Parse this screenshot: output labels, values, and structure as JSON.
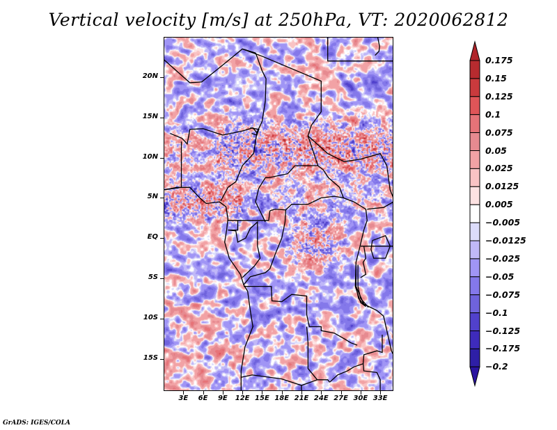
{
  "title": "Vertical velocity [m/s] at 250hPa, VT: 2020062812",
  "footer": "GrADS: IGES/COLA",
  "map": {
    "projection": "latlon",
    "lon_range": [
      0,
      35
    ],
    "lat_range": [
      -19,
      25
    ],
    "lat_ticks": [
      {
        "value": 20,
        "label": "20N"
      },
      {
        "value": 15,
        "label": "15N"
      },
      {
        "value": 10,
        "label": "10N"
      },
      {
        "value": 5,
        "label": "5N"
      },
      {
        "value": 0,
        "label": "EQ"
      },
      {
        "value": -5,
        "label": "5S"
      },
      {
        "value": -10,
        "label": "10S"
      },
      {
        "value": -15,
        "label": "15S"
      }
    ],
    "lon_ticks": [
      {
        "value": 3,
        "label": "3E"
      },
      {
        "value": 6,
        "label": "6E"
      },
      {
        "value": 9,
        "label": "9E"
      },
      {
        "value": 12,
        "label": "12E"
      },
      {
        "value": 15,
        "label": "15E"
      },
      {
        "value": 18,
        "label": "18E"
      },
      {
        "value": 21,
        "label": "21E"
      },
      {
        "value": 24,
        "label": "24E"
      },
      {
        "value": 27,
        "label": "27E"
      },
      {
        "value": 30,
        "label": "30E"
      },
      {
        "value": 33,
        "label": "33E"
      }
    ],
    "variable": "vertical velocity",
    "units": "m/s",
    "level": "250hPa",
    "valid_time": "2020062812"
  },
  "colorbar": {
    "labels": [
      "0.175",
      "0.15",
      "0.125",
      "0.1",
      "0.075",
      "0.05",
      "0.025",
      "0.0125",
      "0.005",
      "−0.005",
      "−0.0125",
      "−0.025",
      "−0.05",
      "−0.075",
      "−0.1",
      "−0.125",
      "−0.175",
      "−0.2"
    ],
    "levels": [
      0.175,
      0.15,
      0.125,
      0.1,
      0.075,
      0.05,
      0.025,
      0.0125,
      0.005,
      -0.005,
      -0.0125,
      -0.025,
      -0.05,
      -0.075,
      -0.1,
      -0.125,
      -0.175,
      -0.2
    ],
    "colors_top_to_bottom": [
      "#b0252a",
      "#b72b2f",
      "#c93a3d",
      "#e05558",
      "#e67378",
      "#e68a90",
      "#f2a2a5",
      "#f9c3c4",
      "#fde2e2",
      "#ffffff",
      "#dcdcfb",
      "#c0b8f8",
      "#a095f5",
      "#8478ea",
      "#6f63dc",
      "#5141cc",
      "#3e2bbb",
      "#2e1fa6",
      "#2a14a0"
    ],
    "extend": "both"
  },
  "chart_data": {
    "type": "heatmap",
    "title": "Vertical velocity [m/s] at 250hPa, VT: 2020062812",
    "xlabel": "",
    "ylabel": "",
    "x_tick_labels": [
      "3E",
      "6E",
      "9E",
      "12E",
      "15E",
      "18E",
      "21E",
      "24E",
      "27E",
      "30E",
      "33E"
    ],
    "y_tick_labels": [
      "20N",
      "15N",
      "10N",
      "5N",
      "EQ",
      "5S",
      "10S",
      "15S"
    ],
    "xlim": [
      0,
      35
    ],
    "ylim": [
      -19,
      25
    ],
    "color_levels": [
      -0.2,
      -0.175,
      -0.125,
      -0.1,
      -0.075,
      -0.05,
      -0.025,
      -0.0125,
      -0.005,
      0.005,
      0.0125,
      0.025,
      0.05,
      0.075,
      0.1,
      0.125,
      0.15,
      0.175
    ],
    "legend": "right",
    "notes": "Strong positive (upward) values concentrated around 8-14N across Nigeria/Chad/Sudan and in the Congo basin near EQ; negative values widespread elsewhere."
  }
}
